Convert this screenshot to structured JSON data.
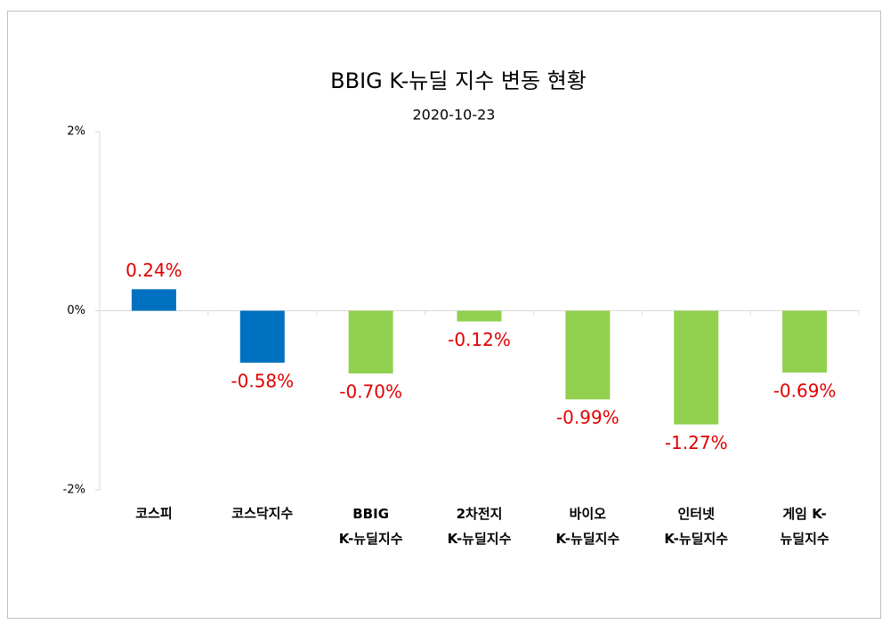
{
  "chart_data": {
    "type": "bar",
    "title": "BBIG K-뉴딜 지수 변동 현황",
    "subtitle": "2020-10-23",
    "categories": [
      "코스피",
      "코스닥지수",
      "BBIG\nK-뉴딜지수",
      "2차전지\nK-뉴딜지수",
      "바이오\nK-뉴딜지수",
      "인터넷\nK-뉴딜지수",
      "게임 K-\n뉴딜지수"
    ],
    "values": [
      0.24,
      -0.58,
      -0.7,
      -0.12,
      -0.99,
      -1.27,
      -0.69
    ],
    "value_labels": [
      "0.24%",
      "-0.58%",
      "-0.70%",
      "-0.12%",
      "-0.99%",
      "-1.27%",
      "-0.69%"
    ],
    "colors": [
      "#0070c0",
      "#0070c0",
      "#92d050",
      "#92d050",
      "#92d050",
      "#92d050",
      "#92d050"
    ],
    "value_label_color": "#e00000",
    "ylim": [
      -2,
      2
    ],
    "yticks": [
      {
        "value": -2,
        "label": "-2%"
      },
      {
        "value": 0,
        "label": "0%"
      },
      {
        "value": 2,
        "label": "2%"
      }
    ],
    "grid": false
  }
}
